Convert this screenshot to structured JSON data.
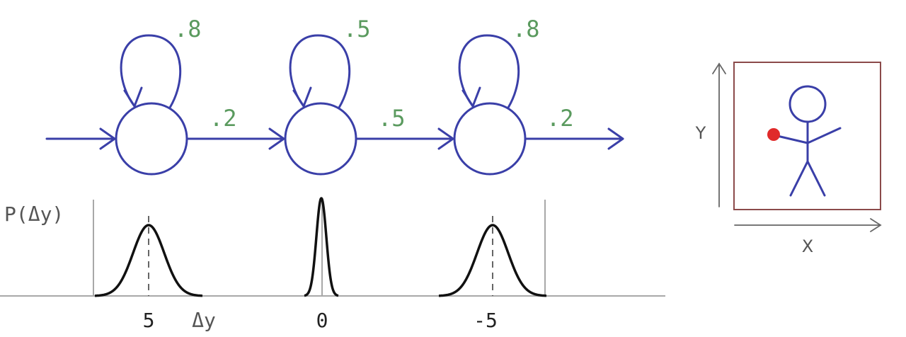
{
  "states": [
    {
      "self_prob": ".8",
      "out_prob": ".2"
    },
    {
      "self_prob": ".5",
      "out_prob": ".5"
    },
    {
      "self_prob": ".8",
      "out_prob": ".2"
    }
  ],
  "density_axis": {
    "ylabel": "P(Δy)",
    "xlabel": "Δy",
    "means": [
      {
        "label": "5",
        "value": 5
      },
      {
        "label": "0",
        "value": 0
      },
      {
        "label": "-5",
        "value": -5
      }
    ]
  },
  "inset": {
    "y_label": "Y",
    "x_label": "X",
    "frame_color": "#8b4a4a",
    "figure_color": "#3a3fa8",
    "marker_color": "#e02a2a"
  }
}
